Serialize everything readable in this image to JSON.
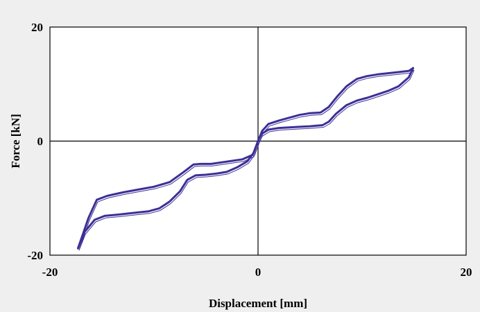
{
  "chart_data": {
    "type": "line",
    "xlabel": "Displacement [mm]",
    "ylabel": "Force [kN]",
    "xlim": [
      -20,
      20
    ],
    "ylim": [
      -20,
      20
    ],
    "xticks": [
      "-20",
      "0",
      "20"
    ],
    "yticks": [
      "20",
      "0",
      "-20"
    ],
    "grid": false,
    "legend": "none",
    "colors": {
      "series": "#3c2f96",
      "axes": "#000000",
      "plot_bg": "#ffffff",
      "page_bg": "#efefef"
    },
    "series": [
      {
        "x": [
          0,
          0.4,
          1,
          2,
          3,
          4,
          5,
          6,
          6.8,
          7.6,
          8.5,
          9.5,
          10.5,
          11.5,
          12.5,
          13.5,
          14.5,
          14.9
        ],
        "y": [
          0,
          1.8,
          3.0,
          3.6,
          4.1,
          4.6,
          4.9,
          5.0,
          6.0,
          7.8,
          9.6,
          10.9,
          11.4,
          11.7,
          11.9,
          12.1,
          12.3,
          12.8
        ]
      },
      {
        "x": [
          14.9,
          14.5,
          13.5,
          12.5,
          11.5,
          10.5,
          9.5,
          8.5,
          7.5,
          6.8,
          6.2,
          5,
          4,
          3,
          2,
          1,
          0.3,
          0
        ],
        "y": [
          12.8,
          11.2,
          9.6,
          8.8,
          8.2,
          7.6,
          7.1,
          6.3,
          4.8,
          3.4,
          2.8,
          2.6,
          2.5,
          2.4,
          2.3,
          2.0,
          1.2,
          0
        ]
      },
      {
        "x": [
          0,
          -0.5,
          -1.5,
          -3,
          -4.5,
          -5.5,
          -6.2,
          -7.2,
          -8.5,
          -10,
          -11.5,
          -13,
          -14.5,
          -15.5,
          -16.3,
          -17.3
        ],
        "y": [
          0,
          -2.4,
          -3.2,
          -3.6,
          -4.0,
          -4.0,
          -4.1,
          -5.5,
          -7.2,
          -8.0,
          -8.5,
          -9.0,
          -9.6,
          -10.3,
          -13.5,
          -18.8
        ]
      },
      {
        "x": [
          -17.3,
          -16.7,
          -15.7,
          -14.7,
          -13.5,
          -12,
          -10.5,
          -9.5,
          -8.5,
          -7.5,
          -6.8,
          -6.0,
          -5,
          -4,
          -3,
          -2,
          -1,
          -0.4,
          0
        ],
        "y": [
          -18.8,
          -16.0,
          -13.8,
          -13.1,
          -12.9,
          -12.6,
          -12.3,
          -11.8,
          -10.6,
          -8.8,
          -6.8,
          -6.0,
          -5.9,
          -5.7,
          -5.4,
          -4.6,
          -3.5,
          -2.0,
          0
        ]
      }
    ]
  }
}
